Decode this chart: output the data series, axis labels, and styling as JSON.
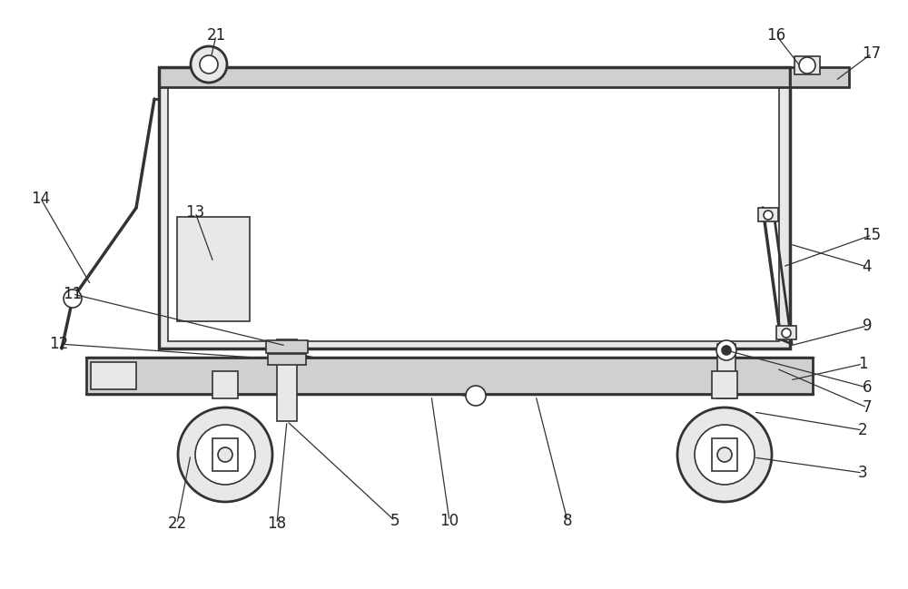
{
  "bg_color": "#ffffff",
  "line_color": "#333333",
  "lw_main": 2.0,
  "lw_thin": 1.2,
  "label_fontsize": 12,
  "label_color": "#222222",
  "annotation_lw": 0.9
}
